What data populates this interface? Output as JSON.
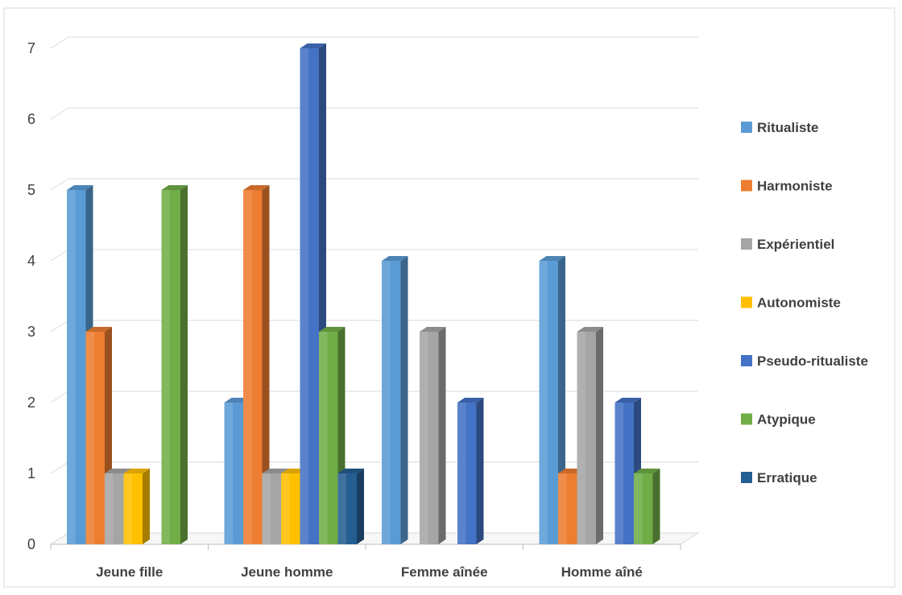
{
  "chart_data": {
    "type": "bar",
    "categories": [
      "Jeune fille",
      "Jeune homme",
      "Femme aînée",
      "Homme aîné"
    ],
    "ylim": [
      0,
      7
    ],
    "yticks": [
      "0",
      "1",
      "2",
      "3",
      "4",
      "5",
      "6",
      "7"
    ],
    "grid": true,
    "legend_position": "right",
    "series": [
      {
        "name": "Ritualiste",
        "color": "#5b9bd5",
        "values": [
          5,
          2,
          4,
          4
        ]
      },
      {
        "name": "Harmoniste",
        "color": "#ed7d31",
        "values": [
          3,
          5,
          0,
          1
        ]
      },
      {
        "name": "Expérientiel",
        "color": "#a5a5a5",
        "values": [
          1,
          1,
          3,
          3
        ]
      },
      {
        "name": "Autonomiste",
        "color": "#ffc000",
        "values": [
          1,
          1,
          0,
          0
        ]
      },
      {
        "name": "Pseudo-ritualiste",
        "color": "#4472c4",
        "values": [
          0,
          7,
          2,
          2
        ]
      },
      {
        "name": "Atypique",
        "color": "#70ad47",
        "values": [
          5,
          3,
          0,
          1
        ]
      },
      {
        "name": "Erratique",
        "color": "#255e91",
        "values": [
          0,
          1,
          0,
          0
        ]
      }
    ]
  }
}
